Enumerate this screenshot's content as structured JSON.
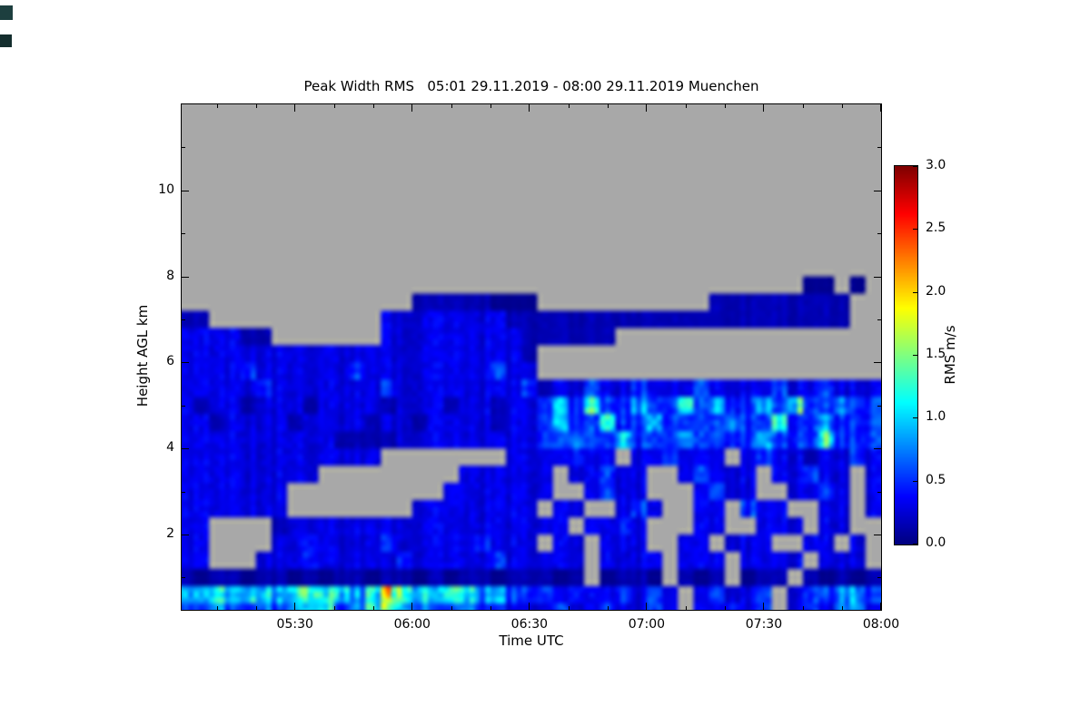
{
  "title": "Peak Width RMS   05:01 29.11.2019 - 08:00 29.11.2019 Muenchen",
  "chart_data": {
    "type": "heatmap",
    "title": "Peak Width RMS   05:01 29.11.2019 - 08:00 29.11.2019 Muenchen",
    "xlabel": "Time UTC",
    "ylabel": "Height AGL km",
    "colorbar_label": "RMS m/s",
    "station": "Muenchen",
    "time_start": "05:01 29.11.2019",
    "time_end": "08:00 29.11.2019",
    "no_data_color": "#a8a8a8",
    "x_axis": {
      "base_time": "05:00",
      "start_minute": 1,
      "end_minute": 180,
      "ticks": [
        {
          "label": "05:30",
          "minute": 30
        },
        {
          "label": "06:00",
          "minute": 60
        },
        {
          "label": "06:30",
          "minute": 90
        },
        {
          "label": "07:00",
          "minute": 120
        },
        {
          "label": "07:30",
          "minute": 150
        },
        {
          "label": "08:00",
          "minute": 180
        }
      ],
      "minor_tick_step_minutes": 10
    },
    "y_axis": {
      "min_km": 0.25,
      "max_km": 12,
      "ticks": [
        {
          "label": "2",
          "km": 2
        },
        {
          "label": "4",
          "km": 4
        },
        {
          "label": "6",
          "km": 6
        },
        {
          "label": "8",
          "km": 8
        },
        {
          "label": "10",
          "km": 10
        }
      ],
      "minor_ticks_km": [
        1,
        3,
        5,
        7,
        9,
        11
      ]
    },
    "colorbar": {
      "min": 0,
      "max": 3,
      "colormap": "jet",
      "ticks": [
        {
          "label": "0.0",
          "v": 0.0
        },
        {
          "label": "0.5",
          "v": 0.5
        },
        {
          "label": "1.0",
          "v": 1.0
        },
        {
          "label": "1.5",
          "v": 1.5
        },
        {
          "label": "2.0",
          "v": 2.0
        },
        {
          "label": "2.5",
          "v": 2.5
        },
        {
          "label": "3.0",
          "v": 3.0
        }
      ]
    },
    "grid": {
      "description": "RMS m/s on a time-height grid. Columns: 45 bins of 4 minutes starting 05:00. Rows: 30 bins of 0.4 km from 12 km (top) down to 0 km. '.' means no data (gray).",
      "t_start_minute": 0,
      "t_step_minutes": 4,
      "n_cols": 45,
      "h_top_km": 12,
      "h_step_km": 0.4,
      "n_rows": 30,
      "levels": {
        ".": null,
        "a": 0.05,
        "b": 0.15,
        "c": 0.3,
        "d": 0.5,
        "e": 0.8,
        "f": 1.1,
        "g": 1.5,
        "h": 1.8
      },
      "rows": [
        ".............................................",
        ".............................................",
        ".............................................",
        ".............................................",
        ".............................................",
        ".............................................",
        ".............................................",
        ".............................................",
        ".............................................",
        ".............................................",
        "........................................aa.a.",
        "...............bbbbbaaa...........bbbbbbbbb..",
        "bb...........ccccccccbbbbbbbbbbbbbbbbbbbbbb..",
        "ccccbb.......cccccccccbbbbbb.................",
        "ccccccccccccccccccccccb......................",
        "ccccdccccccdccccccccdcc......................",
        "cccccdcccccccdccccccccdbccdccdcccdccccdccdccc",
        "cbccbcccbccccbcccbccbccdedfddeddfdeddedfddedd",
        "ccbccccbccccbccbccccbccdeddfddeddddeddfddeddd",
        "ccccccccccbbbbcccccccccddeddfdddeddddedddfddd",
        "ccccccccccccc........ccccdcc.ccdccc.cdccbccdc",
        "ccccccccc.........cccccc.ccdcc..cdccc.ccdcc.c",
        "ccccccc..........ccccccc..cdcc...cdcc..ccdc.c",
        "ccccccc........cccccccc.cc..cdc..cc.dcc..cc.c",
        "cc....bcccccccccccccccccc.ccdc...cc..ccc.cc..",
        "cc....ccdccccdcccccdccc.cc.ccc..cc.ccc..cc.c.",
        "cc...cccdcccccdcccccdccccc.cccc.ccc.cccc.ccc.",
        "babbabbababbabbababbabbbab.abba.bab.abb.babab",
        "eefeffefgffefhgfeffeedddcdccdcdc.cdccd.cddeed",
        "ddeddedeffdefgfeddeddcccdccdccdc.ccdcd.cdceec"
      ]
    }
  },
  "artifacts": {
    "color_1": "#1d3f3f",
    "color_2": "#142e2e"
  }
}
